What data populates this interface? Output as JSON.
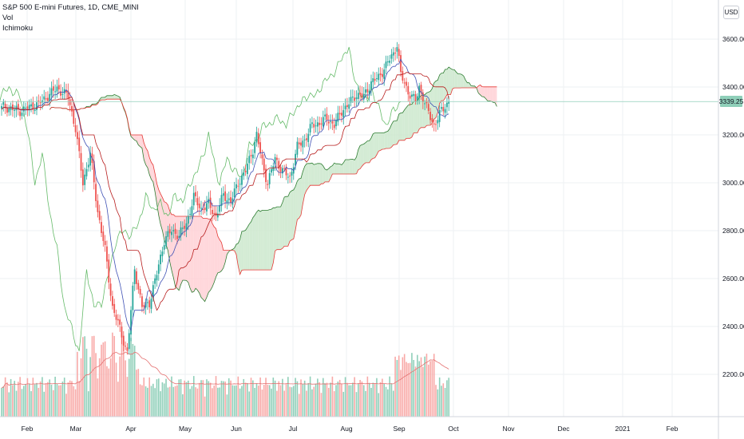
{
  "legend": {
    "symbol": "S&P 500 E-mini Futures, 1D, CME_MINI",
    "vol": "Vol",
    "ichimoku": "Ichimoku"
  },
  "currency": "USD",
  "last_price": "3339.25",
  "colors": {
    "up": "#26a69a",
    "down": "#ef5350",
    "volume_up": "#8fcfb9",
    "volume_down": "#f8a9a7",
    "tenkan": "#3f51b5",
    "kijun": "#b71c1c",
    "chikou": "#66bb6a",
    "cloud_bull": "#c8e6c9",
    "cloud_bear": "#ffcdd2",
    "senkou_a": "#2e7d32",
    "senkou_b": "#e53935",
    "volume_ma": "#e57373"
  },
  "chart_data": {
    "type": "candlestick",
    "title": "S&P 500 E-mini Futures, 1D, CME_MINI",
    "y_ticks": [
      "3600.00",
      "3400.00",
      "3200.00",
      "3000.00",
      "2800.00",
      "2600.00",
      "2400.00",
      "2200.00"
    ],
    "x_ticks": [
      "Feb",
      "Mar",
      "Apr",
      "May",
      "Jun",
      "Jul",
      "Aug",
      "Sep",
      "Oct",
      "Nov",
      "Dec",
      "2021",
      "Feb"
    ],
    "ylim": [
      2100,
      3660
    ],
    "grid": true,
    "legend_position": "top-left",
    "close_anchors": [
      [
        0,
        3320
      ],
      [
        10,
        3300
      ],
      [
        20,
        3330
      ],
      [
        30,
        3395
      ],
      [
        36,
        3360
      ],
      [
        40,
        3225
      ],
      [
        44,
        3000
      ],
      [
        48,
        3120
      ],
      [
        52,
        2880
      ],
      [
        56,
        2720
      ],
      [
        60,
        2480
      ],
      [
        64,
        2390
      ],
      [
        68,
        2290
      ],
      [
        72,
        2640
      ],
      [
        76,
        2480
      ],
      [
        80,
        2500
      ],
      [
        84,
        2620
      ],
      [
        88,
        2760
      ],
      [
        92,
        2800
      ],
      [
        96,
        2780
      ],
      [
        100,
        2830
      ],
      [
        104,
        2940
      ],
      [
        108,
        2890
      ],
      [
        112,
        2910
      ],
      [
        116,
        2860
      ],
      [
        120,
        2950
      ],
      [
        124,
        2920
      ],
      [
        128,
        3000
      ],
      [
        132,
        3050
      ],
      [
        136,
        3140
      ],
      [
        138,
        3200
      ],
      [
        142,
        3050
      ],
      [
        144,
        3000
      ],
      [
        148,
        3100
      ],
      [
        152,
        3050
      ],
      [
        156,
        3020
      ],
      [
        160,
        3150
      ],
      [
        164,
        3180
      ],
      [
        168,
        3240
      ],
      [
        172,
        3250
      ],
      [
        176,
        3270
      ],
      [
        180,
        3240
      ],
      [
        184,
        3300
      ],
      [
        188,
        3330
      ],
      [
        192,
        3370
      ],
      [
        196,
        3360
      ],
      [
        200,
        3420
      ],
      [
        204,
        3440
      ],
      [
        208,
        3490
      ],
      [
        212,
        3540
      ],
      [
        214,
        3580
      ],
      [
        216,
        3450
      ],
      [
        220,
        3380
      ],
      [
        224,
        3340
      ],
      [
        226,
        3400
      ],
      [
        230,
        3310
      ],
      [
        234,
        3240
      ],
      [
        238,
        3300
      ],
      [
        240,
        3320
      ],
      [
        242,
        3339.25
      ]
    ],
    "series": [
      {
        "name": "Conversion Line (Tenkan)",
        "type": "line"
      },
      {
        "name": "Base Line (Kijun)",
        "type": "line"
      },
      {
        "name": "Lagging Span (Chikou)",
        "type": "line"
      },
      {
        "name": "Leading Span A",
        "type": "line"
      },
      {
        "name": "Leading Span B",
        "type": "line"
      },
      {
        "name": "Volume",
        "type": "bar"
      }
    ]
  }
}
